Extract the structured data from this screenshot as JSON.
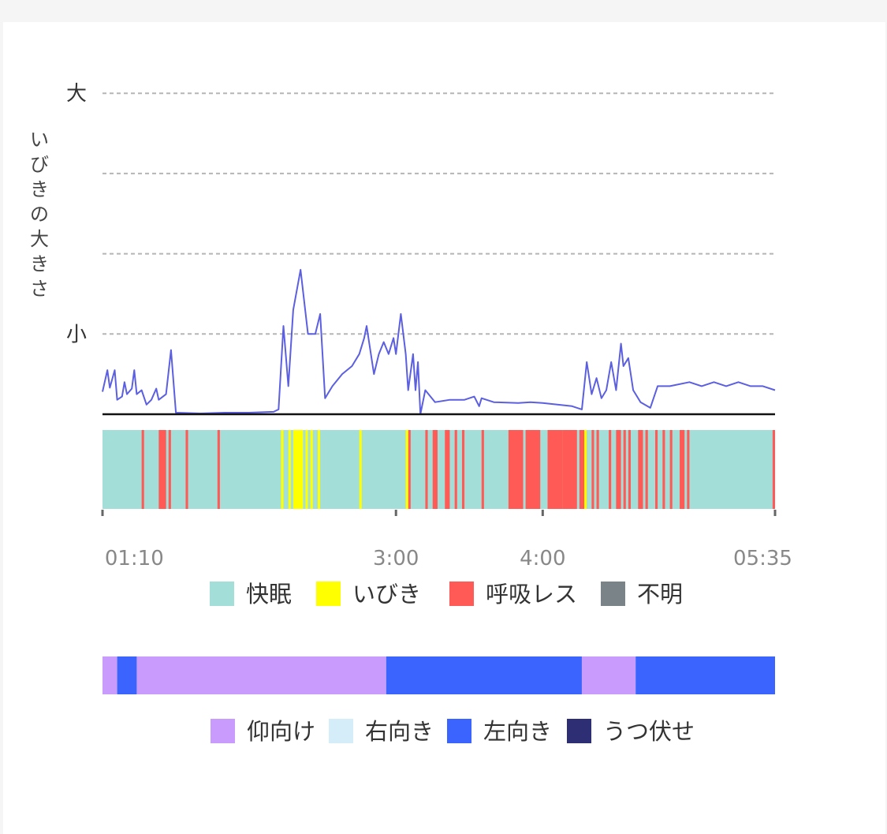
{
  "chart_data": [
    {
      "type": "line",
      "ylabel": "いびきの大きさ",
      "y_tick_labels": [
        {
          "level": 4,
          "label": "大"
        },
        {
          "level": 3,
          "label": ""
        },
        {
          "level": 2,
          "label": ""
        },
        {
          "level": 1,
          "label": "小"
        }
      ],
      "ylim": [
        0,
        4
      ],
      "grid": true,
      "series_color": "#5b5fe0",
      "series": [
        {
          "name": "",
          "points": [
            [
              "01:00",
              0.28
            ],
            [
              "01:02",
              0.55
            ],
            [
              "01:03",
              0.33
            ],
            [
              "01:05",
              0.55
            ],
            [
              "01:06",
              0.18
            ],
            [
              "01:08",
              0.22
            ],
            [
              "01:09",
              0.4
            ],
            [
              "01:10",
              0.25
            ],
            [
              "01:12",
              0.32
            ],
            [
              "01:13",
              0.55
            ],
            [
              "01:14",
              0.25
            ],
            [
              "01:16",
              0.3
            ],
            [
              "01:18",
              0.12
            ],
            [
              "01:20",
              0.18
            ],
            [
              "01:22",
              0.32
            ],
            [
              "01:23",
              0.18
            ],
            [
              "01:26",
              0.25
            ],
            [
              "01:28",
              0.8
            ],
            [
              "01:30",
              0.02
            ],
            [
              "01:40",
              0.01
            ],
            [
              "01:50",
              0.02
            ],
            [
              "02:00",
              0.02
            ],
            [
              "02:10",
              0.03
            ],
            [
              "02:12",
              0.06
            ],
            [
              "02:14",
              1.1
            ],
            [
              "02:16",
              0.35
            ],
            [
              "02:18",
              1.3
            ],
            [
              "02:21",
              1.8
            ],
            [
              "02:24",
              1.0
            ],
            [
              "02:27",
              1.0
            ],
            [
              "02:29",
              1.25
            ],
            [
              "02:31",
              0.2
            ],
            [
              "02:34",
              0.35
            ],
            [
              "02:38",
              0.5
            ],
            [
              "02:42",
              0.6
            ],
            [
              "02:45",
              0.75
            ],
            [
              "02:47",
              0.95
            ],
            [
              "02:48",
              1.1
            ],
            [
              "02:49",
              0.9
            ],
            [
              "02:51",
              0.5
            ],
            [
              "02:53",
              0.75
            ],
            [
              "02:55",
              0.9
            ],
            [
              "02:57",
              0.75
            ],
            [
              "02:59",
              0.95
            ],
            [
              "03:00",
              0.75
            ],
            [
              "03:02",
              1.25
            ],
            [
              "03:04",
              0.75
            ],
            [
              "03:05",
              0.3
            ],
            [
              "03:07",
              0.75
            ],
            [
              "03:08",
              0.3
            ],
            [
              "03:09",
              0.65
            ],
            [
              "03:10",
              0.0
            ],
            [
              "03:12",
              0.3
            ],
            [
              "03:16",
              0.15
            ],
            [
              "03:22",
              0.18
            ],
            [
              "03:28",
              0.18
            ],
            [
              "03:32",
              0.22
            ],
            [
              "03:34",
              0.1
            ],
            [
              "03:35",
              0.2
            ],
            [
              "03:40",
              0.15
            ],
            [
              "03:50",
              0.14
            ],
            [
              "03:55",
              0.15
            ],
            [
              "04:00",
              0.14
            ],
            [
              "04:06",
              0.12
            ],
            [
              "04:12",
              0.1
            ],
            [
              "04:16",
              0.06
            ],
            [
              "04:18",
              0.65
            ],
            [
              "04:20",
              0.25
            ],
            [
              "04:22",
              0.45
            ],
            [
              "04:24",
              0.2
            ],
            [
              "04:26",
              0.3
            ],
            [
              "04:28",
              0.65
            ],
            [
              "04:30",
              0.3
            ],
            [
              "04:32",
              0.88
            ],
            [
              "04:33",
              0.6
            ],
            [
              "04:35",
              0.7
            ],
            [
              "04:37",
              0.3
            ],
            [
              "04:40",
              0.15
            ],
            [
              "04:44",
              0.08
            ],
            [
              "04:47",
              0.35
            ],
            [
              "04:52",
              0.35
            ],
            [
              "05:00",
              0.4
            ],
            [
              "05:05",
              0.35
            ],
            [
              "05:10",
              0.4
            ],
            [
              "05:15",
              0.35
            ],
            [
              "05:20",
              0.4
            ],
            [
              "05:25",
              0.35
            ],
            [
              "05:30",
              0.35
            ],
            [
              "05:35",
              0.3
            ]
          ]
        }
      ]
    },
    {
      "type": "timeline",
      "x_tick_labels": [
        "01:10",
        "3:00",
        "4:00",
        "05:35"
      ],
      "base_state": "快眠",
      "legend": [
        {
          "label": "快眠",
          "color": "#a4ded8"
        },
        {
          "label": "いびき",
          "color": "#ffff00"
        },
        {
          "label": "呼吸レス",
          "color": "#ff5a55"
        },
        {
          "label": "不明",
          "color": "#7a8387"
        }
      ],
      "red_ranges": [
        [
          "01:16",
          "01:17"
        ],
        [
          "01:23",
          "01:26"
        ],
        [
          "01:27",
          "01:28"
        ],
        [
          "01:34",
          "01:35"
        ],
        [
          "01:47",
          "01:48"
        ],
        [
          "03:05",
          "03:06"
        ],
        [
          "03:12",
          "03:13"
        ],
        [
          "03:15",
          "03:17"
        ],
        [
          "03:20",
          "03:22"
        ],
        [
          "03:24",
          "03:25"
        ],
        [
          "03:27",
          "03:28"
        ],
        [
          "03:35",
          "03:36"
        ],
        [
          "03:46",
          "03:52"
        ],
        [
          "03:53",
          "03:59"
        ],
        [
          "04:02",
          "04:08"
        ],
        [
          "04:08",
          "04:14"
        ],
        [
          "04:15",
          "04:18"
        ],
        [
          "04:20",
          "04:21"
        ],
        [
          "04:22",
          "04:23"
        ],
        [
          "04:27",
          "04:28"
        ],
        [
          "04:30",
          "04:32"
        ],
        [
          "04:33",
          "04:34"
        ],
        [
          "04:35",
          "04:36"
        ],
        [
          "04:39",
          "04:41"
        ],
        [
          "04:42",
          "04:43"
        ],
        [
          "04:46",
          "04:47"
        ],
        [
          "04:49",
          "04:50"
        ],
        [
          "04:52",
          "04:53"
        ],
        [
          "04:56",
          "04:58"
        ],
        [
          "04:59",
          "05:00"
        ],
        [
          "05:34",
          "05:35"
        ]
      ],
      "yellow_ranges": [
        [
          "02:13",
          "02:14"
        ],
        [
          "02:16",
          "02:17"
        ],
        [
          "02:18",
          "02:22"
        ],
        [
          "02:23",
          "02:24"
        ],
        [
          "02:25",
          "02:26"
        ],
        [
          "02:28",
          "02:29"
        ],
        [
          "02:45",
          "02:46"
        ],
        [
          "03:04",
          "03:05"
        ],
        [
          "04:17",
          "04:18"
        ]
      ]
    },
    {
      "type": "timeline",
      "legend": [
        {
          "label": "仰向け",
          "color": "#c89bfd"
        },
        {
          "label": "右向き",
          "color": "#d4edf8"
        },
        {
          "label": "左向き",
          "color": "#3b63fd"
        },
        {
          "label": "うつ伏せ",
          "color": "#2d2e73"
        }
      ],
      "segments": [
        {
          "start": "01:00",
          "end": "01:06",
          "state": "仰向け"
        },
        {
          "start": "01:06",
          "end": "01:14",
          "state": "左向き"
        },
        {
          "start": "01:14",
          "end": "02:56",
          "state": "仰向け"
        },
        {
          "start": "02:56",
          "end": "04:16",
          "state": "左向き"
        },
        {
          "start": "04:16",
          "end": "04:38",
          "state": "仰向け"
        },
        {
          "start": "04:38",
          "end": "05:35",
          "state": "左向き"
        }
      ]
    }
  ]
}
